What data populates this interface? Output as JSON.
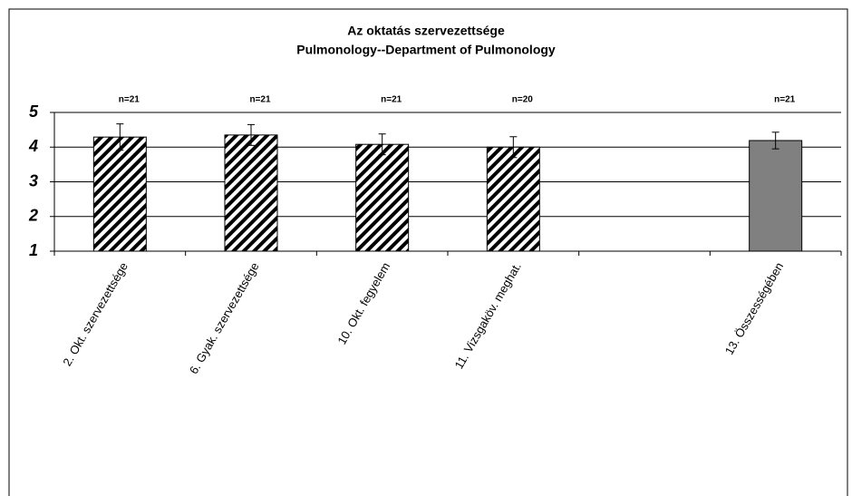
{
  "chart_data": {
    "type": "bar",
    "title": "Az oktatás szervezettsége",
    "subtitle": "Pulmonology--Department of Pulmonology",
    "categories": [
      "2. Okt. szervezettsége",
      "6. Gyak. szervezettsége",
      "10. Okt. fegyelem",
      "11. Vizsgaköv. meghat.",
      null,
      "13. Összességében"
    ],
    "values": [
      4.29,
      4.35,
      4.08,
      4.0,
      null,
      4.19
    ],
    "errors": [
      0.38,
      0.3,
      0.3,
      0.3,
      null,
      0.24
    ],
    "annotations": [
      "n=21",
      "n=21",
      "n=21",
      "n=20",
      null,
      "n=21"
    ],
    "bar_styles": [
      "hatch",
      "hatch",
      "hatch",
      "hatch",
      null,
      "solid"
    ],
    "color": "#808080",
    "hatch_color": "#000000",
    "ylim": [
      1,
      5
    ],
    "yticks": [
      1,
      2,
      3,
      4,
      5
    ],
    "grid": true
  }
}
